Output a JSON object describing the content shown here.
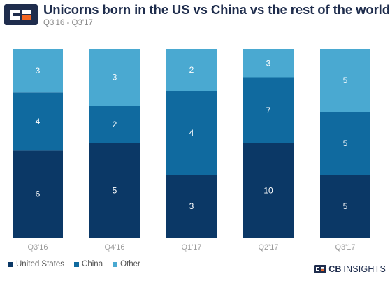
{
  "header": {
    "logo_icon": "cb-insights-logo-icon",
    "title": "Unicorns born in the US vs China vs the rest of the world",
    "subtitle": "Q3'16 - Q3'17"
  },
  "brand": {
    "icon": "cb-insights-mark-icon",
    "bold": "CB",
    "rest": "INSIGHTS"
  },
  "colors": {
    "united_states": "#0b3866",
    "china": "#106a9f",
    "other": "#4aa9d1",
    "title": "#1f2d4d",
    "logo_orange": "#f26522"
  },
  "chart_data": {
    "type": "bar",
    "stacked": true,
    "title": "Unicorns born in the US vs China vs the rest of the world",
    "subtitle": "Q3'16 - Q3'17",
    "categories": [
      "Q3'16",
      "Q4'16",
      "Q1'17",
      "Q2'17",
      "Q3'17"
    ],
    "series": [
      {
        "name": "United States",
        "color": "#0b3866",
        "values": [
          6,
          5,
          3,
          10,
          5
        ]
      },
      {
        "name": "China",
        "color": "#106a9f",
        "values": [
          4,
          2,
          4,
          7,
          5
        ]
      },
      {
        "name": "Other",
        "color": "#4aa9d1",
        "values": [
          3,
          3,
          2,
          3,
          5
        ]
      }
    ],
    "normalized_to_percent": true,
    "ylim": [
      0,
      100
    ],
    "grid": false,
    "legend_position": "bottom-left",
    "data_labels": true
  }
}
